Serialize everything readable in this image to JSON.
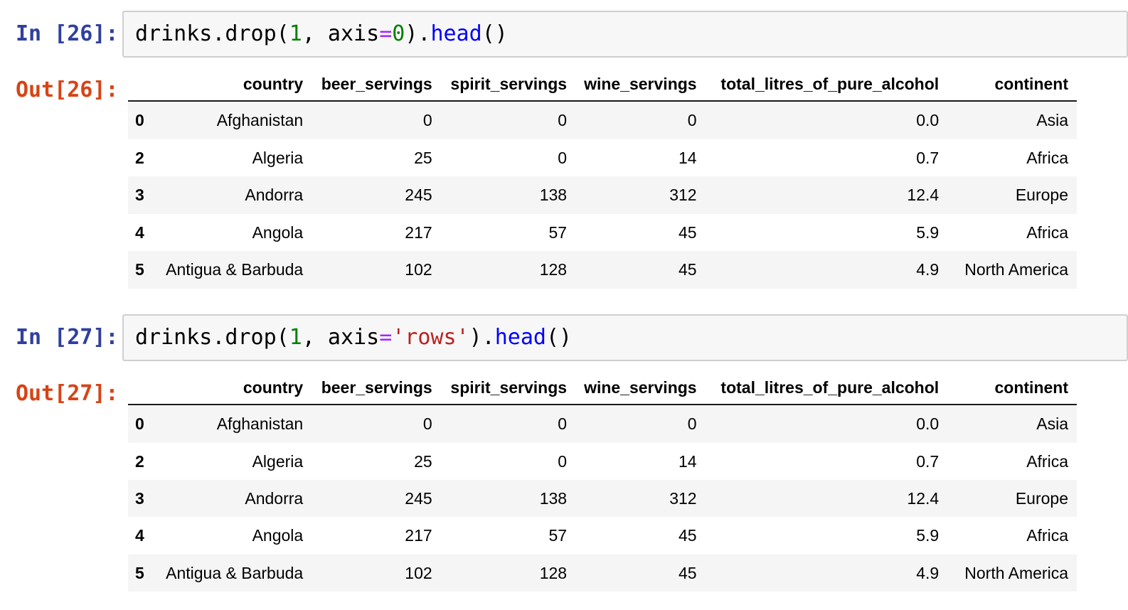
{
  "notebook": {
    "cells": [
      {
        "in_prompt": "In [26]:",
        "out_prompt": "Out[26]:",
        "code_tokens": [
          {
            "text": "drinks.drop(",
            "style": "plain"
          },
          {
            "text": "1",
            "style": "number"
          },
          {
            "text": ", axis",
            "style": "plain"
          },
          {
            "text": "=",
            "style": "operator"
          },
          {
            "text": "0",
            "style": "number"
          },
          {
            "text": ").",
            "style": "plain"
          },
          {
            "text": "head",
            "style": "function"
          },
          {
            "text": "()",
            "style": "plain"
          }
        ],
        "output_table": {
          "index_header": "",
          "columns": [
            "country",
            "beer_servings",
            "spirit_servings",
            "wine_servings",
            "total_litres_of_pure_alcohol",
            "continent"
          ],
          "index": [
            "0",
            "2",
            "3",
            "4",
            "5"
          ],
          "rows": [
            [
              "Afghanistan",
              "0",
              "0",
              "0",
              "0.0",
              "Asia"
            ],
            [
              "Algeria",
              "25",
              "0",
              "14",
              "0.7",
              "Africa"
            ],
            [
              "Andorra",
              "245",
              "138",
              "312",
              "12.4",
              "Europe"
            ],
            [
              "Angola",
              "217",
              "57",
              "45",
              "5.9",
              "Africa"
            ],
            [
              "Antigua & Barbuda",
              "102",
              "128",
              "45",
              "4.9",
              "North America"
            ]
          ]
        }
      },
      {
        "in_prompt": "In [27]:",
        "out_prompt": "Out[27]:",
        "code_tokens": [
          {
            "text": "drinks.drop(",
            "style": "plain"
          },
          {
            "text": "1",
            "style": "number"
          },
          {
            "text": ", axis",
            "style": "plain"
          },
          {
            "text": "=",
            "style": "operator"
          },
          {
            "text": "'rows'",
            "style": "string"
          },
          {
            "text": ").",
            "style": "plain"
          },
          {
            "text": "head",
            "style": "function"
          },
          {
            "text": "()",
            "style": "plain"
          }
        ],
        "output_table": {
          "index_header": "",
          "columns": [
            "country",
            "beer_servings",
            "spirit_servings",
            "wine_servings",
            "total_litres_of_pure_alcohol",
            "continent"
          ],
          "index": [
            "0",
            "2",
            "3",
            "4",
            "5"
          ],
          "rows": [
            [
              "Afghanistan",
              "0",
              "0",
              "0",
              "0.0",
              "Asia"
            ],
            [
              "Algeria",
              "25",
              "0",
              "14",
              "0.7",
              "Africa"
            ],
            [
              "Andorra",
              "245",
              "138",
              "312",
              "12.4",
              "Europe"
            ],
            [
              "Angola",
              "217",
              "57",
              "45",
              "5.9",
              "Africa"
            ],
            [
              "Antigua & Barbuda",
              "102",
              "128",
              "45",
              "4.9",
              "North America"
            ]
          ]
        }
      }
    ]
  },
  "colors": {
    "in_prompt": "#303f9f",
    "out_prompt": "#d84315",
    "code_plain": "#000000",
    "code_number": "#008000",
    "code_operator": "#aa22ff",
    "code_string": "#ba2121",
    "code_function": "#0000ff",
    "input_bg": "#f7f7f7",
    "input_border": "#cfcfcf",
    "row_stripe": "#f5f5f5",
    "header_border": "#1a1a1a"
  }
}
